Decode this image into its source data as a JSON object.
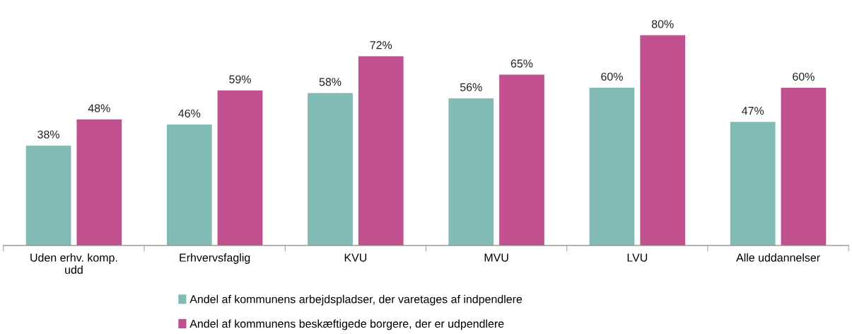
{
  "chart_data": {
    "type": "bar",
    "categories": [
      "Uden erhv. komp.\nudd",
      "Erhvervsfaglig",
      "KVU",
      "MVU",
      "LVU",
      "Alle uddannelser"
    ],
    "series": [
      {
        "name": "Andel af kommunens arbejdspladser, der varetages af indpendlere",
        "color": "#82bab5",
        "values": [
          38,
          46,
          58,
          56,
          60,
          47
        ],
        "value_labels": [
          "38%",
          "46%",
          "58%",
          "56%",
          "60%",
          "47%"
        ]
      },
      {
        "name": "Andel af kommunens beskæftigede borgere, der er udpendlere",
        "color": "#c0518e",
        "values": [
          48,
          59,
          72,
          65,
          80,
          60
        ],
        "value_labels": [
          "48%",
          "59%",
          "72%",
          "65%",
          "80%",
          "60%"
        ]
      }
    ],
    "legend": "bottom",
    "grid": false
  }
}
